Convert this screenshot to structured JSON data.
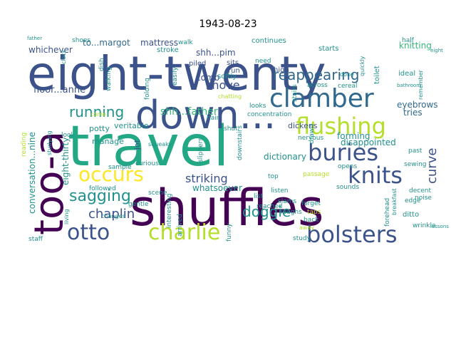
{
  "page": {
    "title": "1943-08-23"
  },
  "palette": {
    "dark_purple": "#440154",
    "indigo": "#3b528b",
    "blue": "#31688e",
    "teal": "#21918c",
    "green": "#35b779",
    "bright_green": "#22a884",
    "yellow_green": "#b5de2b",
    "yellow": "#fde725"
  },
  "words": {
    "travel": "travel",
    "eight_twenty": "eight-twenty",
    "shuffles": "shuffles",
    "too_a": "too-a",
    "down": "down...",
    "clamber": "clamber",
    "flushing": "flushing",
    "buries": "buries",
    "knits": "knits",
    "bolsters": "bolsters",
    "otto": "otto",
    "charlie": "charlie",
    "occurs": "occurs",
    "sagging": "sagging",
    "running": "running",
    "reappearing": "reappearing",
    "doggie": "doggie",
    "chaplin": "chaplin",
    "curve": "curve",
    "shove": "shove",
    "striking": "striking",
    "shh_father": "shh...father",
    "floor_anne": "floor...anne",
    "whichever": "whichever",
    "to_margot": "to...margot",
    "mattress": "mattress",
    "knitting": "knitting",
    "eyebrows": "eyebrows",
    "tries": "tries",
    "forming": "forming",
    "disappointed": "disappointed",
    "dickens": "dickens",
    "dictionary": "dictionary",
    "conversation_nine": "conversation...nine",
    "eight_thirty": "eight-thirty",
    "comb": "comb",
    "shh_pim": "shh...pim",
    "whatsoever": "whatsoever",
    "potty": "potty",
    "veritable": "veritable",
    "manage": "manage",
    "jot": "jot",
    "continues": "continues",
    "starts": "starts",
    "shoes": "shoes",
    "walk": "walk",
    "stroke": "stroke",
    "piled": "piled",
    "softly": "softly",
    "sits": "sits",
    "run": "run",
    "high": "high",
    "need": "need",
    "toilet": "toilet",
    "ideal": "ideal",
    "half": "half",
    "across": "across",
    "cereal": "cereal",
    "stairs": "stairs",
    "looks": "looks",
    "concentration": "concentration",
    "done": "done",
    "quickly": "quickly",
    "remember": "remember",
    "sewing": "sewing",
    "past": "past",
    "opens": "opens",
    "nervous": "nervous",
    "drawn": "drawn",
    "shut": "shut",
    "downstairs": "downstairs",
    "top": "top",
    "passage": "passage",
    "forget": "forget",
    "taps": "taps",
    "sounds": "sounds",
    "edge": "edge",
    "ditto": "ditto",
    "decent": "decent",
    "noise": "noise",
    "wrinkle": "wrinkle",
    "forehead": "forehead",
    "breakfast": "breakfast",
    "slams": "slams",
    "laughs": "laughs",
    "back": "back",
    "away": "away",
    "study": "study",
    "listen": "listen",
    "list": "list",
    "funny": "funny",
    "reached": "reached",
    "arrived": "arrived",
    "interesting": "interesting",
    "slippers": "slippers",
    "hair": "hair",
    "squeaky": "squeaky",
    "curious": "curious",
    "sample": "sample",
    "gentle": "gentle",
    "scene": "scene",
    "followed": "followed",
    "look": "look",
    "studying": "studying",
    "living": "living",
    "reading": "reading",
    "changes": "changes",
    "staff": "staff",
    "come": "come",
    "chatting": "chatting",
    "walking": "walking",
    "folding": "folding",
    "easily": "easily",
    "dish": "dish",
    "eight": "eight",
    "bathroom": "bathroom",
    "father": "father",
    "clock": "clock",
    "lessons": "lessons"
  }
}
